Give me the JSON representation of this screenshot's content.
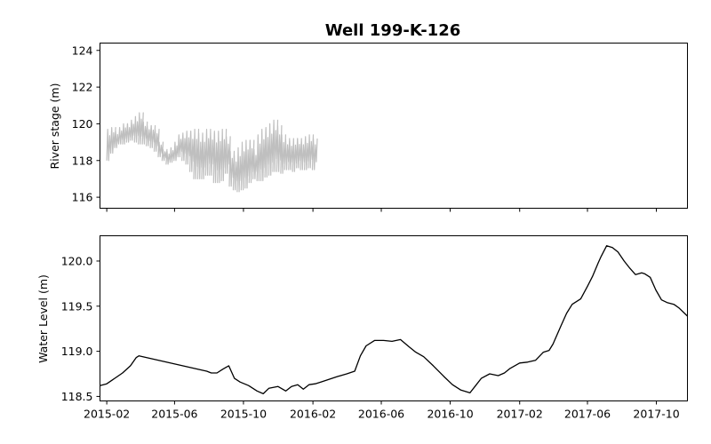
{
  "chart_data": [
    {
      "type": "line",
      "title": "Well 199-K-126",
      "xlabel": "",
      "ylabel": "River stage (m)",
      "xlim": [
        "2015-01-20",
        "2017-11-25"
      ],
      "ylim": [
        115.4,
        124.4
      ],
      "yticks": [
        "116",
        "118",
        "120",
        "122",
        "124"
      ],
      "grid": false,
      "color": "#bfbfbf",
      "series": [
        {
          "x": [
            "2015-02-01",
            "2015-02-08",
            "2015-02-15",
            "2015-02-22",
            "2015-03-01",
            "2015-03-08",
            "2015-03-15",
            "2015-03-22",
            "2015-03-29",
            "2015-04-05",
            "2015-04-12",
            "2015-04-19",
            "2015-04-26",
            "2015-05-03",
            "2015-05-10",
            "2015-05-17",
            "2015-05-24",
            "2015-05-31",
            "2015-06-07",
            "2015-06-14",
            "2015-06-21",
            "2015-06-28",
            "2015-07-05",
            "2015-07-12",
            "2015-07-19",
            "2015-07-26",
            "2015-08-02",
            "2015-08-09",
            "2015-08-16",
            "2015-08-23",
            "2015-08-30",
            "2015-09-06",
            "2015-09-13",
            "2015-09-20",
            "2015-09-27",
            "2015-10-04",
            "2015-10-11",
            "2015-10-18",
            "2015-10-25",
            "2015-11-01",
            "2015-11-08",
            "2015-11-15",
            "2015-11-22",
            "2015-11-29",
            "2015-12-06",
            "2015-12-13",
            "2015-12-20",
            "2015-12-27",
            "2016-01-03",
            "2016-01-10",
            "2016-01-17",
            "2016-01-24",
            "2016-01-31"
          ],
          "min": [
            118.0,
            118.4,
            118.7,
            118.9,
            118.9,
            119.0,
            119.1,
            119.0,
            118.9,
            118.9,
            118.8,
            118.7,
            118.5,
            118.2,
            118.0,
            117.8,
            117.9,
            118.0,
            118.2,
            118.0,
            117.8,
            117.4,
            117.0,
            117.0,
            117.0,
            117.2,
            117.2,
            116.8,
            116.8,
            116.9,
            117.3,
            116.6,
            116.4,
            116.3,
            116.4,
            116.5,
            116.8,
            117.0,
            116.9,
            116.9,
            117.1,
            117.2,
            117.4,
            117.4,
            117.3,
            117.5,
            117.5,
            117.4,
            117.6,
            117.5,
            117.5,
            117.6,
            117.5
          ],
          "max": [
            119.7,
            119.8,
            119.6,
            119.8,
            120.0,
            120.0,
            120.2,
            120.4,
            120.6,
            120.1,
            119.9,
            119.9,
            119.7,
            119.0,
            118.6,
            118.5,
            118.7,
            119.0,
            119.4,
            119.5,
            119.6,
            119.6,
            119.7,
            119.5,
            119.5,
            119.7,
            119.6,
            119.5,
            119.6,
            119.7,
            119.3,
            118.5,
            118.3,
            118.7,
            119.0,
            119.1,
            119.1,
            118.6,
            119.4,
            119.7,
            119.8,
            120.0,
            120.2,
            119.9,
            119.4,
            119.2,
            119.1,
            119.2,
            119.2,
            119.2,
            119.3,
            119.4,
            119.2
          ]
        }
      ]
    },
    {
      "type": "line",
      "title": "",
      "xlabel": "",
      "ylabel": "Water Level (m)",
      "xlim": [
        "2015-01-20",
        "2017-11-25"
      ],
      "ylim": [
        118.45,
        120.28
      ],
      "yticks": [
        "118.5",
        "119.0",
        "119.5",
        "120.0"
      ],
      "xticks": [
        "2015-02",
        "2015-06",
        "2015-10",
        "2016-02",
        "2016-06",
        "2016-10",
        "2017-02",
        "2017-06",
        "2017-10"
      ],
      "grid": false,
      "color": "#000000",
      "series": [
        {
          "x": [
            "2015-01-20",
            "2015-02-01",
            "2015-02-15",
            "2015-03-01",
            "2015-03-15",
            "2015-03-25",
            "2015-03-30",
            "2015-07-20",
            "2015-07-28",
            "2015-08-05",
            "2015-08-15",
            "2015-08-25",
            "2015-09-05",
            "2015-09-15",
            "2015-09-25",
            "2015-10-10",
            "2015-10-25",
            "2015-11-05",
            "2015-11-15",
            "2015-12-01",
            "2015-12-15",
            "2015-12-25",
            "2016-01-05",
            "2016-01-15",
            "2016-01-25",
            "2016-02-05",
            "2016-02-15",
            "2016-02-25",
            "2016-03-15",
            "2016-04-01",
            "2016-04-15",
            "2016-04-25",
            "2016-05-05",
            "2016-05-20",
            "2016-06-05",
            "2016-06-20",
            "2016-07-05",
            "2016-07-20",
            "2016-08-01",
            "2016-08-15",
            "2016-09-01",
            "2016-09-20",
            "2016-10-05",
            "2016-10-20",
            "2016-11-05",
            "2016-11-15",
            "2016-11-25",
            "2016-12-10",
            "2016-12-25",
            "2017-01-05",
            "2017-01-15",
            "2017-02-01",
            "2017-02-15",
            "2017-03-01",
            "2017-03-15",
            "2017-03-25",
            "2017-04-01",
            "2017-04-15",
            "2017-04-25",
            "2017-05-05",
            "2017-05-20",
            "2017-06-01",
            "2017-06-10",
            "2017-06-20",
            "2017-06-25",
            "2017-07-05",
            "2017-07-15",
            "2017-07-25",
            "2017-08-05",
            "2017-08-15",
            "2017-08-25",
            "2017-09-05",
            "2017-09-10",
            "2017-09-20",
            "2017-09-30",
            "2017-10-10",
            "2017-10-20",
            "2017-11-01",
            "2017-11-10",
            "2017-11-25"
          ],
          "y": [
            118.62,
            118.64,
            118.7,
            118.76,
            118.84,
            118.93,
            118.95,
            118.79,
            118.78,
            118.76,
            118.76,
            118.8,
            118.84,
            118.7,
            118.66,
            118.62,
            118.56,
            118.53,
            118.59,
            118.61,
            118.56,
            118.61,
            118.63,
            118.58,
            118.63,
            118.64,
            118.66,
            118.68,
            118.72,
            118.75,
            118.78,
            118.95,
            119.06,
            119.12,
            119.12,
            119.11,
            119.13,
            119.05,
            118.99,
            118.94,
            118.84,
            118.72,
            118.63,
            118.57,
            118.54,
            118.62,
            118.7,
            118.75,
            118.73,
            118.76,
            118.81,
            118.87,
            118.88,
            118.9,
            118.99,
            119.01,
            119.08,
            119.28,
            119.42,
            119.52,
            119.58,
            119.72,
            119.83,
            119.98,
            120.05,
            120.17,
            120.15,
            120.1,
            120.0,
            119.92,
            119.85,
            119.87,
            119.86,
            119.82,
            119.68,
            119.57,
            119.54,
            119.52,
            119.48,
            119.39
          ]
        }
      ]
    }
  ]
}
